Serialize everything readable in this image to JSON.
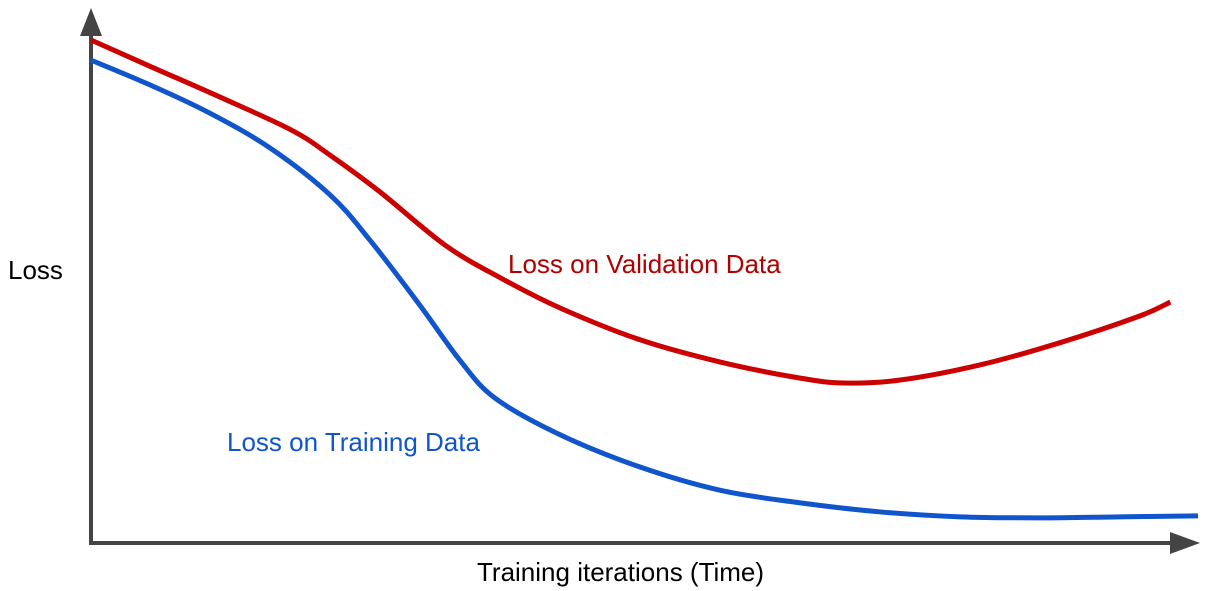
{
  "chart_data": {
    "type": "line",
    "title": "",
    "xlabel": "Training iterations (Time)",
    "ylabel": "Loss",
    "grid": false,
    "ticks": false,
    "series": [
      {
        "name": "Loss on Validation Data",
        "color": "#cc0000",
        "label_color": "#b00000",
        "x": [
          0,
          5.3,
          11.6,
          18.1,
          21.6,
          26.1,
          32,
          37,
          42.4,
          49.6,
          56.8,
          64,
          68.1,
          73.1,
          80.3,
          87.5,
          94.7,
          97.5
        ],
        "y": [
          100,
          94.8,
          88.7,
          82.1,
          77.1,
          69.8,
          59.2,
          52.7,
          46.7,
          40.4,
          36,
          32.8,
          31.8,
          32.4,
          35.4,
          39.8,
          45.1,
          47.9
        ]
      },
      {
        "name": "Loss on Training Data",
        "color": "#1155cc",
        "label_color": "#1155cc",
        "x": [
          0,
          5.3,
          10.7,
          16.2,
          21.6,
          25.2,
          29.7,
          33.3,
          36.5,
          42.4,
          49.6,
          56.8,
          64,
          71.2,
          78.5,
          85.7,
          92.9,
          100
        ],
        "y": [
          96,
          91.1,
          85.5,
          78.5,
          69.2,
          60.2,
          47.3,
          36.4,
          28.8,
          21.5,
          15.1,
          10.5,
          8,
          6.2,
          5.2,
          5,
          5.2,
          5.4
        ]
      }
    ],
    "axis_color": "#444444"
  }
}
